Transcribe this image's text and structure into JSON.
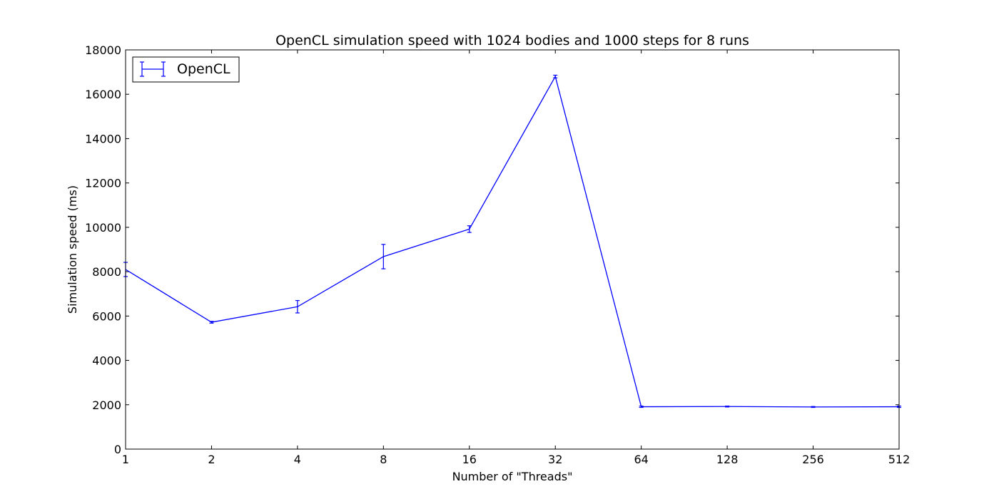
{
  "chart_data": {
    "type": "line",
    "title": "OpenCL simulation speed with 1024 bodies and 1000 steps for 8 runs",
    "xlabel": "Number of \"Threads\"",
    "ylabel": "Simulation speed (ms)",
    "x_scale": "categorical",
    "categories": [
      "1",
      "2",
      "4",
      "8",
      "16",
      "32",
      "64",
      "128",
      "256",
      "512"
    ],
    "ylim": [
      0,
      18000
    ],
    "yticks": [
      0,
      2000,
      4000,
      6000,
      8000,
      10000,
      12000,
      14000,
      16000,
      18000
    ],
    "grid": false,
    "legend": {
      "position": "top-left",
      "entries": [
        "OpenCL"
      ]
    },
    "series": [
      {
        "name": "OpenCL",
        "color": "#0000ff",
        "values": [
          8100,
          5720,
          6420,
          8680,
          9920,
          16800,
          1910,
          1920,
          1900,
          1910
        ],
        "errors": [
          320,
          40,
          280,
          550,
          150,
          60,
          30,
          20,
          20,
          30
        ]
      }
    ]
  }
}
